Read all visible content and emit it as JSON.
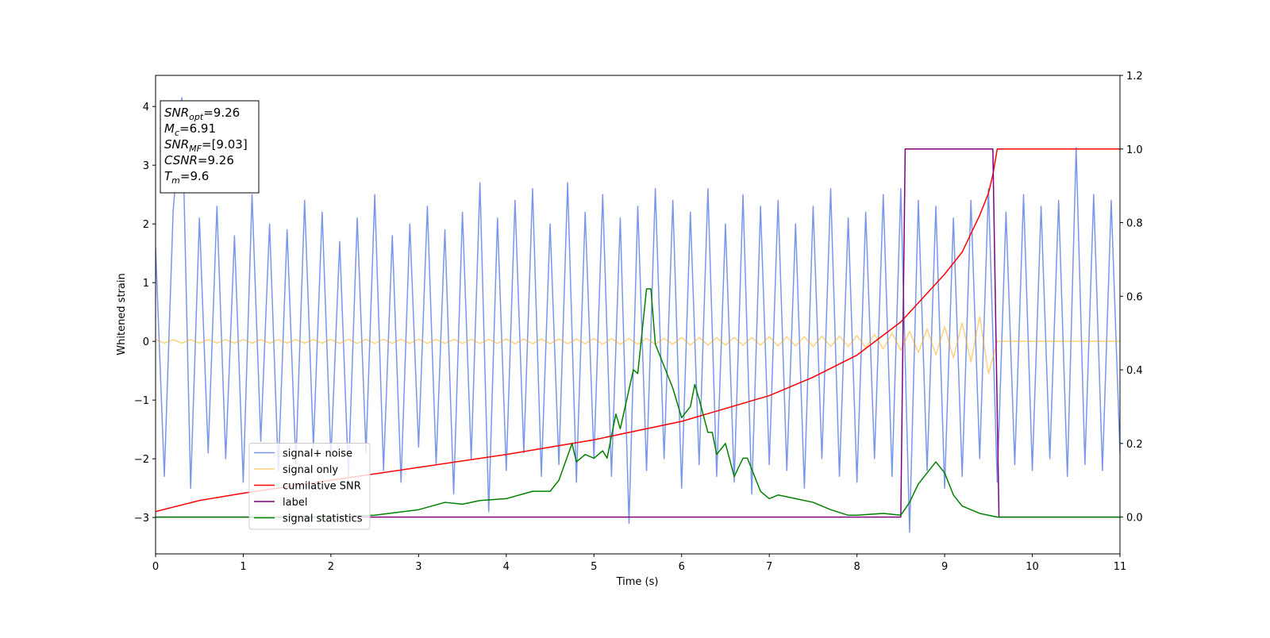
{
  "chart_data": {
    "type": "line",
    "xlabel": "Time (s)",
    "ylabel": "Whitened strain",
    "xlim": [
      0,
      11
    ],
    "ylim": [
      -3.62,
      4.53
    ],
    "y2lim": [
      -0.1,
      1.2
    ],
    "xticks": [
      0,
      1,
      2,
      3,
      4,
      5,
      6,
      7,
      8,
      9,
      10,
      11
    ],
    "yticks": [
      {
        "value": -3,
        "label": "−3"
      },
      {
        "value": -2,
        "label": "−2"
      },
      {
        "value": -1,
        "label": "−1"
      },
      0,
      1,
      2,
      3,
      4
    ],
    "y2ticks": [
      {
        "value": 0,
        "label": "0.0"
      },
      0.2,
      0.4,
      0.6,
      0.8,
      {
        "value": 1,
        "label": "1.0"
      },
      1.2
    ],
    "grid": false,
    "legend_loc": "lower left",
    "x": [
      0,
      0.1,
      0.2,
      0.3,
      0.4,
      0.5,
      0.6,
      0.7,
      0.8,
      0.9,
      1,
      1.1,
      1.2,
      1.3,
      1.4,
      1.5,
      1.6,
      1.7,
      1.8,
      1.9,
      2,
      2.1,
      2.2,
      2.3,
      2.4,
      2.5,
      2.6,
      2.7,
      2.8,
      2.9,
      3,
      3.1,
      3.2,
      3.3,
      3.4,
      3.5,
      3.6,
      3.7,
      3.8,
      3.9,
      4,
      4.1,
      4.2,
      4.3,
      4.4,
      4.5,
      4.6,
      4.7,
      4.8,
      4.9,
      5,
      5.1,
      5.2,
      5.3,
      5.4,
      5.5,
      5.6,
      5.7,
      5.8,
      5.9,
      6,
      6.1,
      6.2,
      6.3,
      6.4,
      6.5,
      6.6,
      6.7,
      6.8,
      6.9,
      7,
      7.1,
      7.2,
      7.3,
      7.4,
      7.5,
      7.6,
      7.7,
      7.8,
      7.9,
      8,
      8.1,
      8.2,
      8.3,
      8.4,
      8.5,
      8.6,
      8.7,
      8.8,
      8.9,
      9,
      9.1,
      9.2,
      9.3,
      9.4,
      9.5,
      9.6,
      9.7,
      9.8,
      9.9,
      10,
      10.1,
      10.2,
      10.3,
      10.4,
      10.5,
      10.6,
      10.7,
      10.8,
      10.9,
      11
    ],
    "series": [
      {
        "name": "signal+ noise",
        "color": "#4169e1",
        "alpha": 0.7,
        "values": [
          1.6,
          -2.3,
          2.2,
          4.15,
          -2.5,
          2.1,
          -1.9,
          2.3,
          -2.0,
          1.8,
          -2.4,
          2.5,
          -1.7,
          2.0,
          -2.2,
          1.9,
          -2.1,
          2.4,
          -1.8,
          2.2,
          -2.0,
          1.7,
          -2.3,
          2.1,
          -1.9,
          2.5,
          -2.2,
          1.8,
          -2.4,
          2.0,
          -1.8,
          2.3,
          -2.1,
          1.9,
          -2.6,
          2.2,
          -2.0,
          2.7,
          -2.9,
          2.1,
          -2.2,
          2.4,
          -1.9,
          2.6,
          -2.3,
          2.0,
          -2.1,
          2.7,
          -2.4,
          2.2,
          -2.0,
          2.5,
          -2.3,
          2.1,
          -3.1,
          2.3,
          -2.2,
          2.6,
          -2.0,
          2.4,
          -2.5,
          2.2,
          -2.1,
          2.6,
          -2.3,
          2.0,
          -2.4,
          2.5,
          -2.6,
          2.3,
          -2.1,
          2.4,
          -2.2,
          2.0,
          -2.5,
          2.3,
          -2.0,
          2.6,
          -2.3,
          2.1,
          -2.4,
          2.2,
          -2.0,
          2.5,
          -2.3,
          2.6,
          -3.25,
          2.4,
          -2.2,
          2.3,
          -2.5,
          2.1,
          -2.3,
          2.4,
          -2.0,
          2.6,
          -2.4,
          2.2,
          -2.1,
          2.5,
          -2.2,
          2.3,
          -2.0,
          2.4,
          -2.3,
          3.3,
          -2.1,
          2.5,
          -2.2,
          2.4,
          -1.9
        ]
      },
      {
        "name": "signal only",
        "color": "#ffa500",
        "alpha": 0.5,
        "values": [
          0.03,
          -0.03,
          0.03,
          -0.03,
          0.03,
          -0.03,
          0.03,
          -0.03,
          0.03,
          -0.03,
          0.03,
          -0.03,
          0.03,
          -0.03,
          0.03,
          -0.03,
          0.03,
          -0.03,
          0.03,
          -0.03,
          0.035,
          -0.035,
          0.035,
          -0.035,
          0.035,
          -0.035,
          0.035,
          -0.035,
          0.035,
          -0.035,
          0.035,
          -0.035,
          0.035,
          -0.035,
          0.035,
          -0.035,
          0.035,
          -0.035,
          0.035,
          -0.035,
          0.04,
          -0.04,
          0.04,
          -0.04,
          0.04,
          -0.04,
          0.04,
          -0.04,
          0.04,
          -0.04,
          0.05,
          -0.05,
          0.05,
          -0.05,
          0.05,
          -0.05,
          0.05,
          -0.05,
          0.05,
          -0.05,
          0.065,
          -0.065,
          0.065,
          -0.065,
          0.065,
          -0.065,
          0.065,
          -0.065,
          0.065,
          -0.065,
          0.08,
          -0.08,
          0.08,
          -0.08,
          0.08,
          -0.09,
          0.09,
          -0.09,
          0.09,
          -0.09,
          0.1,
          -0.11,
          0.12,
          -0.13,
          0.14,
          -0.15,
          0.17,
          -0.19,
          0.21,
          -0.23,
          0.25,
          -0.28,
          0.31,
          -0.35,
          0.42,
          -0.55,
          0,
          0,
          0,
          0,
          0,
          0,
          0,
          0,
          0,
          0,
          0,
          0,
          0,
          0,
          0
        ]
      },
      {
        "name": "cumilative SNR",
        "color": "#ff0000",
        "alpha": 1,
        "axis": "y2",
        "x": [
          0,
          0.5,
          1,
          2,
          3,
          4,
          5,
          6,
          7,
          7.5,
          8,
          8.5,
          9,
          9.2,
          9.3,
          9.4,
          9.5,
          9.55,
          9.6,
          11
        ],
        "values": [
          0.015,
          0.045,
          0.065,
          0.1,
          0.135,
          0.17,
          0.21,
          0.26,
          0.33,
          0.38,
          0.44,
          0.53,
          0.66,
          0.72,
          0.77,
          0.82,
          0.88,
          0.93,
          1.0,
          1.0
        ]
      },
      {
        "name": "label",
        "color": "#800080",
        "alpha": 1,
        "axis": "y2",
        "x": [
          0,
          8.5,
          8.55,
          9.55,
          9.62,
          11
        ],
        "values": [
          0,
          0,
          1,
          1,
          0,
          0
        ]
      },
      {
        "name": "signal statistics",
        "color": "#008000",
        "alpha": 1,
        "axis": "y2",
        "x": [
          0,
          1,
          2,
          2.5,
          3,
          3.3,
          3.5,
          3.7,
          4,
          4.3,
          4.5,
          4.6,
          4.75,
          4.8,
          4.9,
          5,
          5.1,
          5.15,
          5.25,
          5.3,
          5.45,
          5.5,
          5.6,
          5.65,
          5.7,
          5.9,
          6,
          6.1,
          6.15,
          6.2,
          6.3,
          6.35,
          6.4,
          6.5,
          6.6,
          6.7,
          6.75,
          6.9,
          7,
          7.1,
          7.3,
          7.5,
          7.7,
          7.9,
          8,
          8.3,
          8.5,
          8.6,
          8.7,
          8.8,
          8.9,
          9,
          9.1,
          9.2,
          9.4,
          9.6,
          11
        ],
        "values": [
          0,
          0,
          0,
          0.005,
          0.02,
          0.04,
          0.035,
          0.045,
          0.05,
          0.07,
          0.07,
          0.1,
          0.2,
          0.15,
          0.17,
          0.16,
          0.18,
          0.16,
          0.28,
          0.24,
          0.4,
          0.39,
          0.62,
          0.62,
          0.47,
          0.35,
          0.27,
          0.3,
          0.36,
          0.32,
          0.23,
          0.23,
          0.17,
          0.2,
          0.11,
          0.16,
          0.16,
          0.07,
          0.05,
          0.06,
          0.05,
          0.04,
          0.02,
          0.005,
          0.005,
          0.01,
          0.005,
          0.04,
          0.09,
          0.12,
          0.15,
          0.12,
          0.06,
          0.03,
          0.01,
          0,
          0
        ]
      }
    ],
    "annotation": [
      {
        "symbol": "SNR",
        "sub": "opt",
        "value": "=9.26"
      },
      {
        "symbol": "M",
        "sub": "c",
        "value": "=6.91"
      },
      {
        "symbol": "SNR",
        "sub": "MF",
        "value": "=[9.03]"
      },
      {
        "symbol": "CSNR",
        "value": "=9.26"
      },
      {
        "symbol": "T",
        "sub": "m",
        "value": "=9.6"
      }
    ]
  }
}
